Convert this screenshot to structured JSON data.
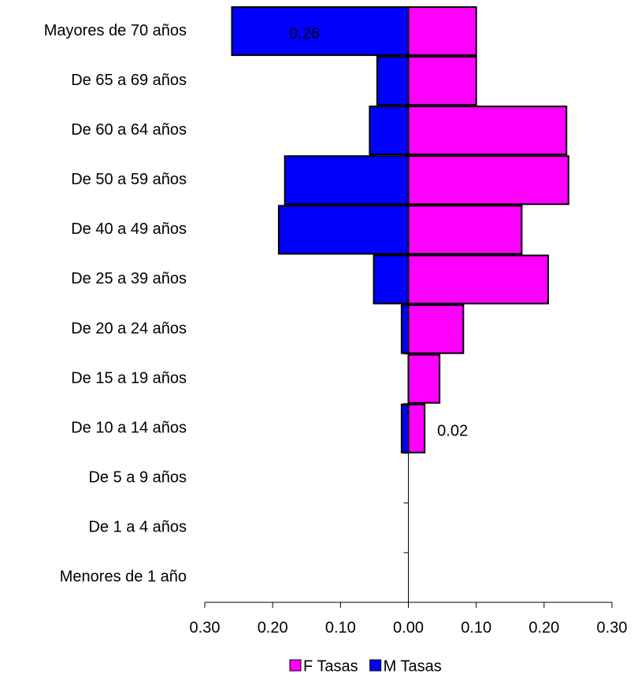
{
  "chart_data": {
    "type": "pyramid",
    "categories": [
      "Mayores de 70 años",
      "De 65 a 69 años",
      "De 60 a 64 años",
      "De 50 a 59 años",
      "De 40 a 49 años",
      "De 25 a 39 años",
      "De 20 a 24 años",
      "De 15 a 19 años",
      "De 10 a 14 años",
      "De 5 a 9 años",
      "De 1 a 4 años",
      "Menores de 1 año"
    ],
    "series": [
      {
        "name": "F Tasas",
        "color": "#ff00ff",
        "values": [
          0.1,
          0.1,
          0.233,
          0.236,
          0.167,
          0.206,
          0.081,
          0.046,
          0.024,
          0,
          0,
          0
        ],
        "value_labels": [
          null,
          null,
          null,
          null,
          null,
          null,
          null,
          null,
          "0.02",
          null,
          null,
          null
        ]
      },
      {
        "name": "M Tasas",
        "color": "#0000ff",
        "values": [
          -0.26,
          -0.046,
          -0.057,
          -0.182,
          -0.191,
          -0.051,
          -0.01,
          0,
          -0.01,
          0,
          0,
          0
        ],
        "value_labels": [
          "0.26",
          null,
          null,
          null,
          null,
          null,
          null,
          null,
          null,
          null,
          null,
          null
        ]
      }
    ],
    "xlim": [
      -0.3,
      0.3
    ],
    "xticks": [
      {
        "value": -0.3,
        "label": "0.30"
      },
      {
        "value": -0.2,
        "label": "0.20"
      },
      {
        "value": -0.1,
        "label": "0.10"
      },
      {
        "value": 0,
        "label": "0.00"
      },
      {
        "value": 0.1,
        "label": "0.10"
      },
      {
        "value": 0.2,
        "label": "0.20"
      },
      {
        "value": 0.3,
        "label": "0.30"
      }
    ],
    "legend": "bottom"
  }
}
